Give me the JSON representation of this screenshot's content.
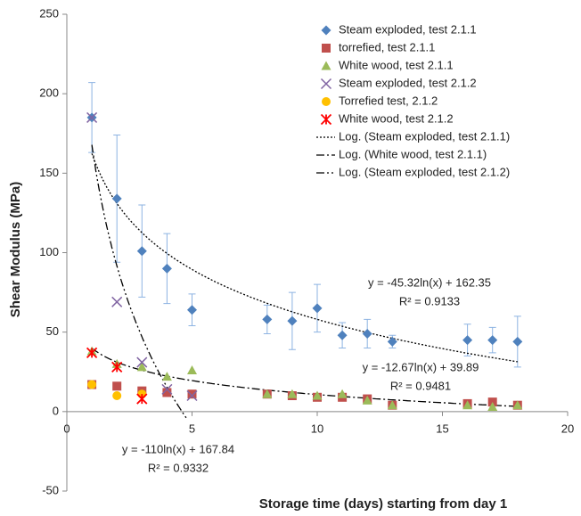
{
  "chart_data": {
    "type": "scatter",
    "x_label": "Storage time (days) starting from day 1",
    "y_label": "Shear Modulus (MPa)",
    "xlim": [
      0,
      20
    ],
    "xticks": [
      0,
      5,
      10,
      15,
      20
    ],
    "ylim": [
      -50,
      250
    ],
    "yticks": [
      -50,
      0,
      50,
      100,
      150,
      200,
      250
    ],
    "grid": false,
    "legend": "top-right",
    "series": [
      {
        "name": "Steam exploded, test 2.1.1",
        "color": "#4f81bd",
        "marker": "diamond",
        "error_color": "#8db3e2",
        "x": [
          1,
          2,
          3,
          4,
          5,
          8,
          9,
          10,
          11,
          12,
          13,
          16,
          17,
          18
        ],
        "values": [
          185,
          134,
          101,
          90,
          64,
          58,
          57,
          65,
          48,
          49,
          44,
          45,
          45,
          44
        ],
        "errors": [
          22,
          40,
          29,
          22,
          10,
          9,
          18,
          15,
          8,
          9,
          4,
          10,
          8,
          16
        ]
      },
      {
        "name": "torrefied, test 2.1.1",
        "color": "#c0504d",
        "marker": "square",
        "x": [
          1,
          2,
          3,
          4,
          5,
          8,
          9,
          10,
          11,
          12,
          13,
          16,
          17,
          18
        ],
        "values": [
          17,
          16,
          13,
          12,
          11,
          11,
          10,
          9,
          9,
          8,
          4,
          5,
          6,
          4
        ]
      },
      {
        "name": "White wood, test 2.1.1",
        "color": "#9bbb59",
        "marker": "triangle",
        "x": [
          1,
          2,
          3,
          4,
          5,
          8,
          9,
          10,
          11,
          12,
          13,
          16,
          17,
          18
        ],
        "values": [
          38,
          30,
          28,
          22,
          26,
          11,
          11,
          10,
          11,
          7,
          4,
          4,
          3,
          4
        ]
      },
      {
        "name": "Steam exploded, test 2.1.2",
        "color": "#8064a2",
        "marker": "x",
        "x": [
          1,
          2,
          3,
          4,
          5
        ],
        "values": [
          185,
          69,
          31,
          14,
          10
        ]
      },
      {
        "name": "Torrefied test, 2.1.2",
        "color": "#ffc000",
        "marker": "circle",
        "x": [
          1,
          2,
          3
        ],
        "values": [
          17,
          10,
          11
        ]
      },
      {
        "name": "White wood, test 2.1.2",
        "color": "#ff0000",
        "marker": "asterisk",
        "x": [
          1,
          2,
          3
        ],
        "values": [
          37,
          28,
          8
        ]
      }
    ],
    "trendlines": [
      {
        "name": "Log. (Steam exploded, test 2.1.1)",
        "style": "dotted",
        "a": -45.32,
        "b": 162.35,
        "xrange": [
          1,
          18
        ],
        "equation": "y = -45.32ln(x) + 162.35",
        "r2": "R² = 0.9133"
      },
      {
        "name": "Log. (White wood, test 2.1.1)",
        "style": "dash-dot",
        "a": -12.67,
        "b": 39.89,
        "xrange": [
          1,
          18
        ],
        "equation": "y = -12.67ln(x) + 39.89",
        "r2": "R² = 0.9481"
      },
      {
        "name": "Log. (Steam exploded, test 2.1.2)",
        "style": "dash-dot-dot",
        "a": -110,
        "b": 167.84,
        "xrange": [
          1,
          4.8
        ],
        "equation": "y = -110ln(x) + 167.84",
        "r2": "R² = 0.9332"
      }
    ]
  }
}
